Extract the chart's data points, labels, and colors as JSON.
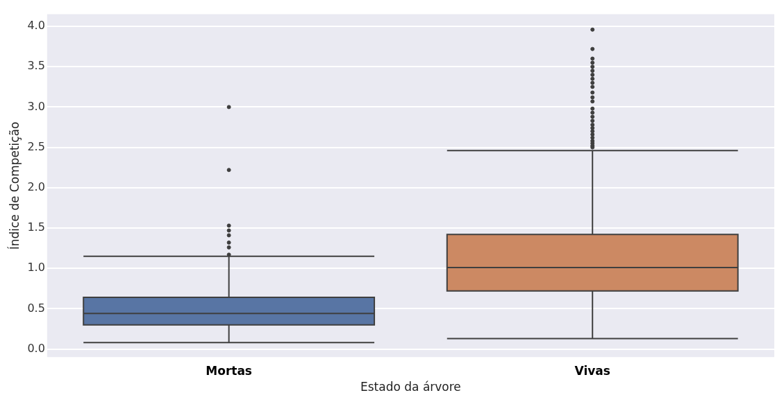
{
  "chart_data": {
    "type": "box",
    "xlabel": "Estado da árvore",
    "ylabel": "Índice de Competição",
    "categories": [
      "Mortas",
      "Vivas"
    ],
    "colors": [
      "#5875a4",
      "#cc8963"
    ],
    "boxes": [
      {
        "low": 0.08,
        "q1": 0.3,
        "median": 0.44,
        "q3": 0.64,
        "high": 1.15,
        "outliers": [
          3.0,
          2.22,
          1.53,
          1.47,
          1.41,
          1.32,
          1.26,
          1.17
        ]
      },
      {
        "low": 0.13,
        "q1": 0.72,
        "median": 1.01,
        "q3": 1.42,
        "high": 2.46,
        "outliers": [
          3.96,
          3.72,
          3.6,
          3.55,
          3.5,
          3.45,
          3.4,
          3.35,
          3.3,
          3.25,
          3.18,
          3.12,
          3.07,
          2.98,
          2.93,
          2.88,
          2.83,
          2.78,
          2.74,
          2.7,
          2.66,
          2.62,
          2.58,
          2.55,
          2.52,
          2.5
        ]
      }
    ],
    "ylim": [
      -0.1,
      4.15
    ],
    "yticks": [
      {
        "value": 0,
        "label": "0.0"
      },
      0.5,
      {
        "value": 1,
        "label": "1.0"
      },
      1.5,
      {
        "value": 2,
        "label": "2.0"
      },
      2.5,
      {
        "value": 3,
        "label": "3.0"
      },
      3.5,
      {
        "value": 4,
        "label": "4.0"
      }
    ],
    "grid": "y"
  }
}
